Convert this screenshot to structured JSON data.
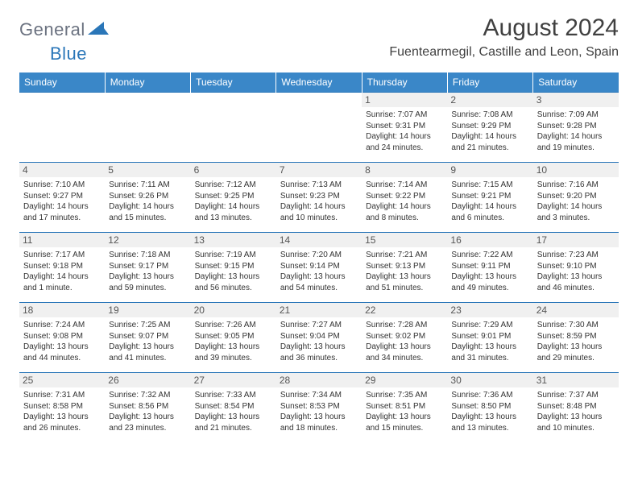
{
  "logo": {
    "text_general": "General",
    "text_blue": "Blue",
    "color_general": "#6b7280",
    "color_blue": "#2a76b8"
  },
  "header": {
    "month_title": "August 2024",
    "location": "Fuentearmegil, Castille and Leon, Spain"
  },
  "styling": {
    "header_bg": "#3a87c8",
    "header_text": "#ffffff",
    "daynum_bg": "#f0f0f0",
    "border_color": "#2a76b8",
    "body_text": "#333333",
    "page_bg": "#ffffff",
    "day_fontsize": 12,
    "cell_fontsize": 10
  },
  "day_names": [
    "Sunday",
    "Monday",
    "Tuesday",
    "Wednesday",
    "Thursday",
    "Friday",
    "Saturday"
  ],
  "weeks": [
    [
      {
        "n": "",
        "sunrise": "",
        "sunset": "",
        "daylight": ""
      },
      {
        "n": "",
        "sunrise": "",
        "sunset": "",
        "daylight": ""
      },
      {
        "n": "",
        "sunrise": "",
        "sunset": "",
        "daylight": ""
      },
      {
        "n": "",
        "sunrise": "",
        "sunset": "",
        "daylight": ""
      },
      {
        "n": "1",
        "sunrise": "Sunrise: 7:07 AM",
        "sunset": "Sunset: 9:31 PM",
        "daylight": "Daylight: 14 hours and 24 minutes."
      },
      {
        "n": "2",
        "sunrise": "Sunrise: 7:08 AM",
        "sunset": "Sunset: 9:29 PM",
        "daylight": "Daylight: 14 hours and 21 minutes."
      },
      {
        "n": "3",
        "sunrise": "Sunrise: 7:09 AM",
        "sunset": "Sunset: 9:28 PM",
        "daylight": "Daylight: 14 hours and 19 minutes."
      }
    ],
    [
      {
        "n": "4",
        "sunrise": "Sunrise: 7:10 AM",
        "sunset": "Sunset: 9:27 PM",
        "daylight": "Daylight: 14 hours and 17 minutes."
      },
      {
        "n": "5",
        "sunrise": "Sunrise: 7:11 AM",
        "sunset": "Sunset: 9:26 PM",
        "daylight": "Daylight: 14 hours and 15 minutes."
      },
      {
        "n": "6",
        "sunrise": "Sunrise: 7:12 AM",
        "sunset": "Sunset: 9:25 PM",
        "daylight": "Daylight: 14 hours and 13 minutes."
      },
      {
        "n": "7",
        "sunrise": "Sunrise: 7:13 AM",
        "sunset": "Sunset: 9:23 PM",
        "daylight": "Daylight: 14 hours and 10 minutes."
      },
      {
        "n": "8",
        "sunrise": "Sunrise: 7:14 AM",
        "sunset": "Sunset: 9:22 PM",
        "daylight": "Daylight: 14 hours and 8 minutes."
      },
      {
        "n": "9",
        "sunrise": "Sunrise: 7:15 AM",
        "sunset": "Sunset: 9:21 PM",
        "daylight": "Daylight: 14 hours and 6 minutes."
      },
      {
        "n": "10",
        "sunrise": "Sunrise: 7:16 AM",
        "sunset": "Sunset: 9:20 PM",
        "daylight": "Daylight: 14 hours and 3 minutes."
      }
    ],
    [
      {
        "n": "11",
        "sunrise": "Sunrise: 7:17 AM",
        "sunset": "Sunset: 9:18 PM",
        "daylight": "Daylight: 14 hours and 1 minute."
      },
      {
        "n": "12",
        "sunrise": "Sunrise: 7:18 AM",
        "sunset": "Sunset: 9:17 PM",
        "daylight": "Daylight: 13 hours and 59 minutes."
      },
      {
        "n": "13",
        "sunrise": "Sunrise: 7:19 AM",
        "sunset": "Sunset: 9:15 PM",
        "daylight": "Daylight: 13 hours and 56 minutes."
      },
      {
        "n": "14",
        "sunrise": "Sunrise: 7:20 AM",
        "sunset": "Sunset: 9:14 PM",
        "daylight": "Daylight: 13 hours and 54 minutes."
      },
      {
        "n": "15",
        "sunrise": "Sunrise: 7:21 AM",
        "sunset": "Sunset: 9:13 PM",
        "daylight": "Daylight: 13 hours and 51 minutes."
      },
      {
        "n": "16",
        "sunrise": "Sunrise: 7:22 AM",
        "sunset": "Sunset: 9:11 PM",
        "daylight": "Daylight: 13 hours and 49 minutes."
      },
      {
        "n": "17",
        "sunrise": "Sunrise: 7:23 AM",
        "sunset": "Sunset: 9:10 PM",
        "daylight": "Daylight: 13 hours and 46 minutes."
      }
    ],
    [
      {
        "n": "18",
        "sunrise": "Sunrise: 7:24 AM",
        "sunset": "Sunset: 9:08 PM",
        "daylight": "Daylight: 13 hours and 44 minutes."
      },
      {
        "n": "19",
        "sunrise": "Sunrise: 7:25 AM",
        "sunset": "Sunset: 9:07 PM",
        "daylight": "Daylight: 13 hours and 41 minutes."
      },
      {
        "n": "20",
        "sunrise": "Sunrise: 7:26 AM",
        "sunset": "Sunset: 9:05 PM",
        "daylight": "Daylight: 13 hours and 39 minutes."
      },
      {
        "n": "21",
        "sunrise": "Sunrise: 7:27 AM",
        "sunset": "Sunset: 9:04 PM",
        "daylight": "Daylight: 13 hours and 36 minutes."
      },
      {
        "n": "22",
        "sunrise": "Sunrise: 7:28 AM",
        "sunset": "Sunset: 9:02 PM",
        "daylight": "Daylight: 13 hours and 34 minutes."
      },
      {
        "n": "23",
        "sunrise": "Sunrise: 7:29 AM",
        "sunset": "Sunset: 9:01 PM",
        "daylight": "Daylight: 13 hours and 31 minutes."
      },
      {
        "n": "24",
        "sunrise": "Sunrise: 7:30 AM",
        "sunset": "Sunset: 8:59 PM",
        "daylight": "Daylight: 13 hours and 29 minutes."
      }
    ],
    [
      {
        "n": "25",
        "sunrise": "Sunrise: 7:31 AM",
        "sunset": "Sunset: 8:58 PM",
        "daylight": "Daylight: 13 hours and 26 minutes."
      },
      {
        "n": "26",
        "sunrise": "Sunrise: 7:32 AM",
        "sunset": "Sunset: 8:56 PM",
        "daylight": "Daylight: 13 hours and 23 minutes."
      },
      {
        "n": "27",
        "sunrise": "Sunrise: 7:33 AM",
        "sunset": "Sunset: 8:54 PM",
        "daylight": "Daylight: 13 hours and 21 minutes."
      },
      {
        "n": "28",
        "sunrise": "Sunrise: 7:34 AM",
        "sunset": "Sunset: 8:53 PM",
        "daylight": "Daylight: 13 hours and 18 minutes."
      },
      {
        "n": "29",
        "sunrise": "Sunrise: 7:35 AM",
        "sunset": "Sunset: 8:51 PM",
        "daylight": "Daylight: 13 hours and 15 minutes."
      },
      {
        "n": "30",
        "sunrise": "Sunrise: 7:36 AM",
        "sunset": "Sunset: 8:50 PM",
        "daylight": "Daylight: 13 hours and 13 minutes."
      },
      {
        "n": "31",
        "sunrise": "Sunrise: 7:37 AM",
        "sunset": "Sunset: 8:48 PM",
        "daylight": "Daylight: 13 hours and 10 minutes."
      }
    ]
  ]
}
